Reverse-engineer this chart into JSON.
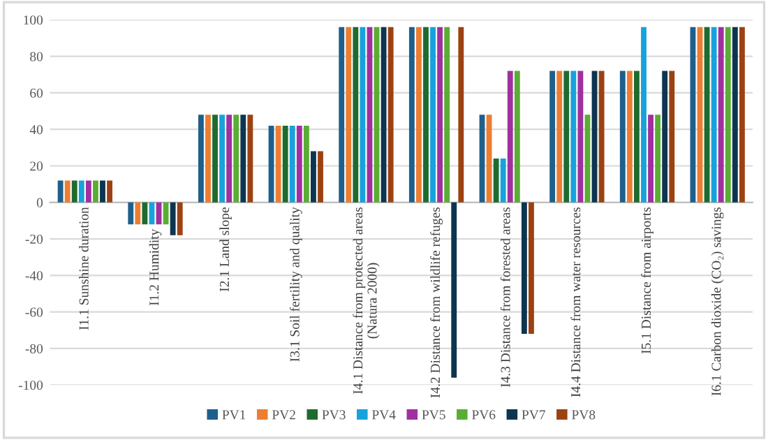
{
  "chart_data": {
    "type": "bar",
    "categories": [
      "I1.1 Sunshine duration",
      "I1.2 Humidity",
      "I2.1 Land slope",
      "I3.1 Soil fertility and quality",
      "I4.1 Distance from protected areas\n(Natura 2000)",
      "I4.2 Distance from wildlife refuges",
      "I4.3 Distance from forested areas",
      "I4.4 Distance from water resources",
      "I5.1 Distance from airports",
      "I6.1 Carbon dioxide (CO₂) savings"
    ],
    "series": [
      {
        "name": "PV1",
        "color": "#1f5f8b",
        "values": [
          12,
          -12,
          48,
          42,
          96,
          96,
          48,
          72,
          72,
          96
        ]
      },
      {
        "name": "PV2",
        "color": "#ed7d31",
        "values": [
          12,
          -12,
          48,
          42,
          96,
          96,
          48,
          72,
          72,
          96
        ]
      },
      {
        "name": "PV3",
        "color": "#1e6b30",
        "values": [
          12,
          -12,
          48,
          42,
          96,
          96,
          24,
          72,
          72,
          96
        ]
      },
      {
        "name": "PV4",
        "color": "#17a2db",
        "values": [
          12,
          -12,
          48,
          42,
          96,
          96,
          24,
          72,
          96,
          96
        ]
      },
      {
        "name": "PV5",
        "color": "#a0309f",
        "values": [
          12,
          -12,
          48,
          42,
          96,
          96,
          72,
          72,
          48,
          96
        ]
      },
      {
        "name": "PV6",
        "color": "#5aad34",
        "values": [
          12,
          -12,
          48,
          42,
          96,
          96,
          72,
          48,
          48,
          96
        ]
      },
      {
        "name": "PV7",
        "color": "#0d3550",
        "values": [
          12,
          -18,
          48,
          28,
          96,
          -96,
          -72,
          72,
          72,
          96
        ]
      },
      {
        "name": "PV8",
        "color": "#9c4212",
        "values": [
          12,
          -18,
          48,
          28,
          96,
          96,
          -72,
          72,
          72,
          96
        ]
      }
    ],
    "ylim": [
      -100,
      100
    ],
    "yticks": [
      -100,
      -80,
      -60,
      -40,
      -20,
      0,
      20,
      40,
      60,
      80,
      100
    ],
    "grid": "y",
    "legend": "bottom"
  }
}
